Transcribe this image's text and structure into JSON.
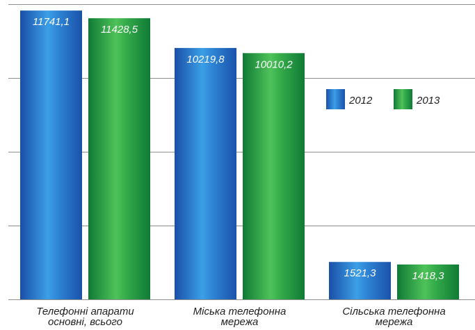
{
  "chart_data": {
    "type": "bar",
    "categories": [
      [
        "Телефонні апарати",
        "основні, всього"
      ],
      [
        "Міська телефонна",
        "мережа"
      ],
      [
        "Сільська телефонна",
        "мережа"
      ]
    ],
    "series": [
      {
        "name": "2012",
        "values": [
          11741.1,
          10219.8,
          1521.3
        ],
        "labels": [
          "11741,1",
          "10219,8",
          "1521,3"
        ],
        "color": "#1b6fc4"
      },
      {
        "name": "2013",
        "values": [
          11428.5,
          10010.2,
          1418.3
        ],
        "labels": [
          "11428,5",
          "10010,2",
          "1418,3"
        ],
        "color": "#1f9a45"
      }
    ],
    "ylim": [
      0,
      12000
    ],
    "gridlines": [
      0,
      3000,
      6000,
      9000,
      12000
    ],
    "grid": true,
    "legend": "right-middle",
    "title": "",
    "xlabel": "",
    "ylabel": ""
  }
}
